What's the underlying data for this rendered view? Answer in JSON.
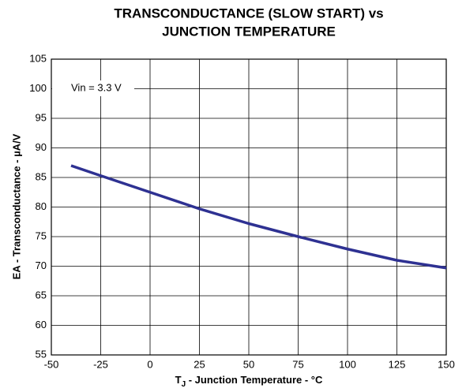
{
  "chart_data": {
    "type": "line",
    "title": [
      "TRANSCONDUCTANCE (SLOW START) vs",
      "JUNCTION TEMPERATURE"
    ],
    "xlabel": {
      "symbol": "T",
      "subscript": "J",
      "text": " - Junction Temperature - °C"
    },
    "ylabel": "EA - Transconductance - µA/V",
    "annotation": "Vin = 3.3 V",
    "xlim": [
      -50,
      150
    ],
    "xticks": [
      -50,
      -25,
      0,
      25,
      50,
      75,
      100,
      125,
      150
    ],
    "ylim": [
      55,
      105
    ],
    "yticks": [
      55,
      60,
      65,
      70,
      75,
      80,
      85,
      90,
      95,
      100,
      105
    ],
    "grid": true,
    "series": [
      {
        "name": "Vin = 3.3 V",
        "color": "#2e3192",
        "x": [
          -40,
          -25,
          0,
          25,
          50,
          75,
          100,
          125,
          150
        ],
        "values": [
          87,
          85.3,
          82.5,
          79.7,
          77.2,
          75,
          72.9,
          71,
          69.7
        ]
      }
    ]
  }
}
